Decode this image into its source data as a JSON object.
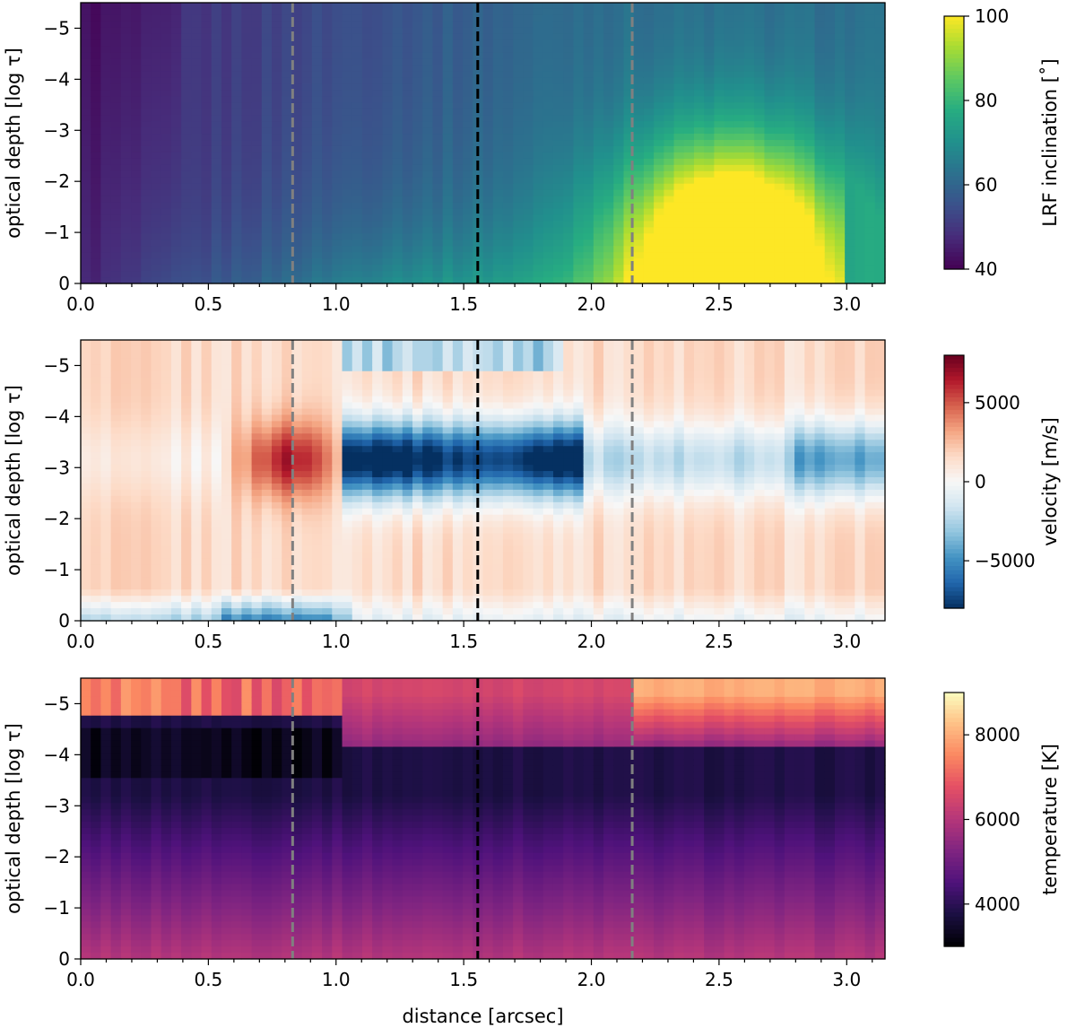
{
  "chart_data": [
    {
      "type": "heatmap",
      "panel": "top",
      "quantity": "inclination",
      "xlim": [
        0,
        3.15
      ],
      "ylim": [
        0,
        -5.5
      ],
      "xticks": [
        0.0,
        0.5,
        1.0,
        1.5,
        2.0,
        2.5,
        3.0
      ],
      "xtick_labels": [
        "0.0",
        "0.5",
        "1.0",
        "1.5",
        "2.0",
        "2.5",
        "3.0"
      ],
      "yticks": [
        -5,
        -4,
        -3,
        -2,
        -1,
        0
      ],
      "ytick_labels": [
        "−5",
        "−4",
        "−3",
        "−2",
        "−1",
        "0"
      ],
      "ylabel": "optical depth [log τ]",
      "xlabel": "",
      "colormap": "viridis",
      "clim": [
        40,
        100
      ],
      "colorbar_label": "LRF inclination [˚]",
      "colorbar_ticks": [
        40,
        60,
        80,
        100
      ],
      "colorbar_tick_labels": [
        "40",
        "60",
        "80",
        "100"
      ],
      "vlines": [
        {
          "x": 0.83,
          "color": "#808080",
          "style": "dashed"
        },
        {
          "x": 1.555,
          "color": "#000000",
          "style": "dashed"
        },
        {
          "x": 2.16,
          "color": "#808080",
          "style": "dashed"
        }
      ]
    },
    {
      "type": "heatmap",
      "panel": "middle",
      "quantity": "velocity",
      "xlim": [
        0,
        3.15
      ],
      "ylim": [
        0,
        -5.5
      ],
      "xticks": [
        0.0,
        0.5,
        1.0,
        1.5,
        2.0,
        2.5,
        3.0
      ],
      "xtick_labels": [
        "0.0",
        "0.5",
        "1.0",
        "1.5",
        "2.0",
        "2.5",
        "3.0"
      ],
      "yticks": [
        -5,
        -4,
        -3,
        -2,
        -1,
        0
      ],
      "ytick_labels": [
        "−5",
        "−4",
        "−3",
        "−2",
        "−1",
        "0"
      ],
      "ylabel": "optical depth [log τ]",
      "xlabel": "",
      "colormap": "RdBu_r",
      "clim": [
        -8000,
        8000
      ],
      "colorbar_label": "velocity [m/s]",
      "colorbar_ticks": [
        -5000,
        0,
        5000
      ],
      "colorbar_tick_labels": [
        "−5000",
        "0",
        "5000"
      ],
      "vlines": [
        {
          "x": 0.83,
          "color": "#808080",
          "style": "dashed"
        },
        {
          "x": 1.555,
          "color": "#000000",
          "style": "dashed"
        },
        {
          "x": 2.16,
          "color": "#808080",
          "style": "dashed"
        }
      ]
    },
    {
      "type": "heatmap",
      "panel": "bottom",
      "quantity": "temperature",
      "xlim": [
        0,
        3.15
      ],
      "ylim": [
        0,
        -5.5
      ],
      "xticks": [
        0.0,
        0.5,
        1.0,
        1.5,
        2.0,
        2.5,
        3.0
      ],
      "xtick_labels": [
        "0.0",
        "0.5",
        "1.0",
        "1.5",
        "2.0",
        "2.5",
        "3.0"
      ],
      "yticks": [
        -5,
        -4,
        -3,
        -2,
        -1,
        0
      ],
      "ytick_labels": [
        "−5",
        "−4",
        "−3",
        "−2",
        "−1",
        "0"
      ],
      "ylabel": "optical depth [log τ]",
      "xlabel": "distance [arcsec]",
      "colormap": "magma",
      "clim": [
        3000,
        9000
      ],
      "colorbar_label": "temperature [K]",
      "colorbar_ticks": [
        4000,
        6000,
        8000
      ],
      "colorbar_tick_labels": [
        "4000",
        "6000",
        "8000"
      ],
      "vlines": [
        {
          "x": 0.83,
          "color": "#808080",
          "style": "dashed"
        },
        {
          "x": 1.555,
          "color": "#000000",
          "style": "dashed"
        },
        {
          "x": 2.16,
          "color": "#808080",
          "style": "dashed"
        }
      ]
    }
  ]
}
